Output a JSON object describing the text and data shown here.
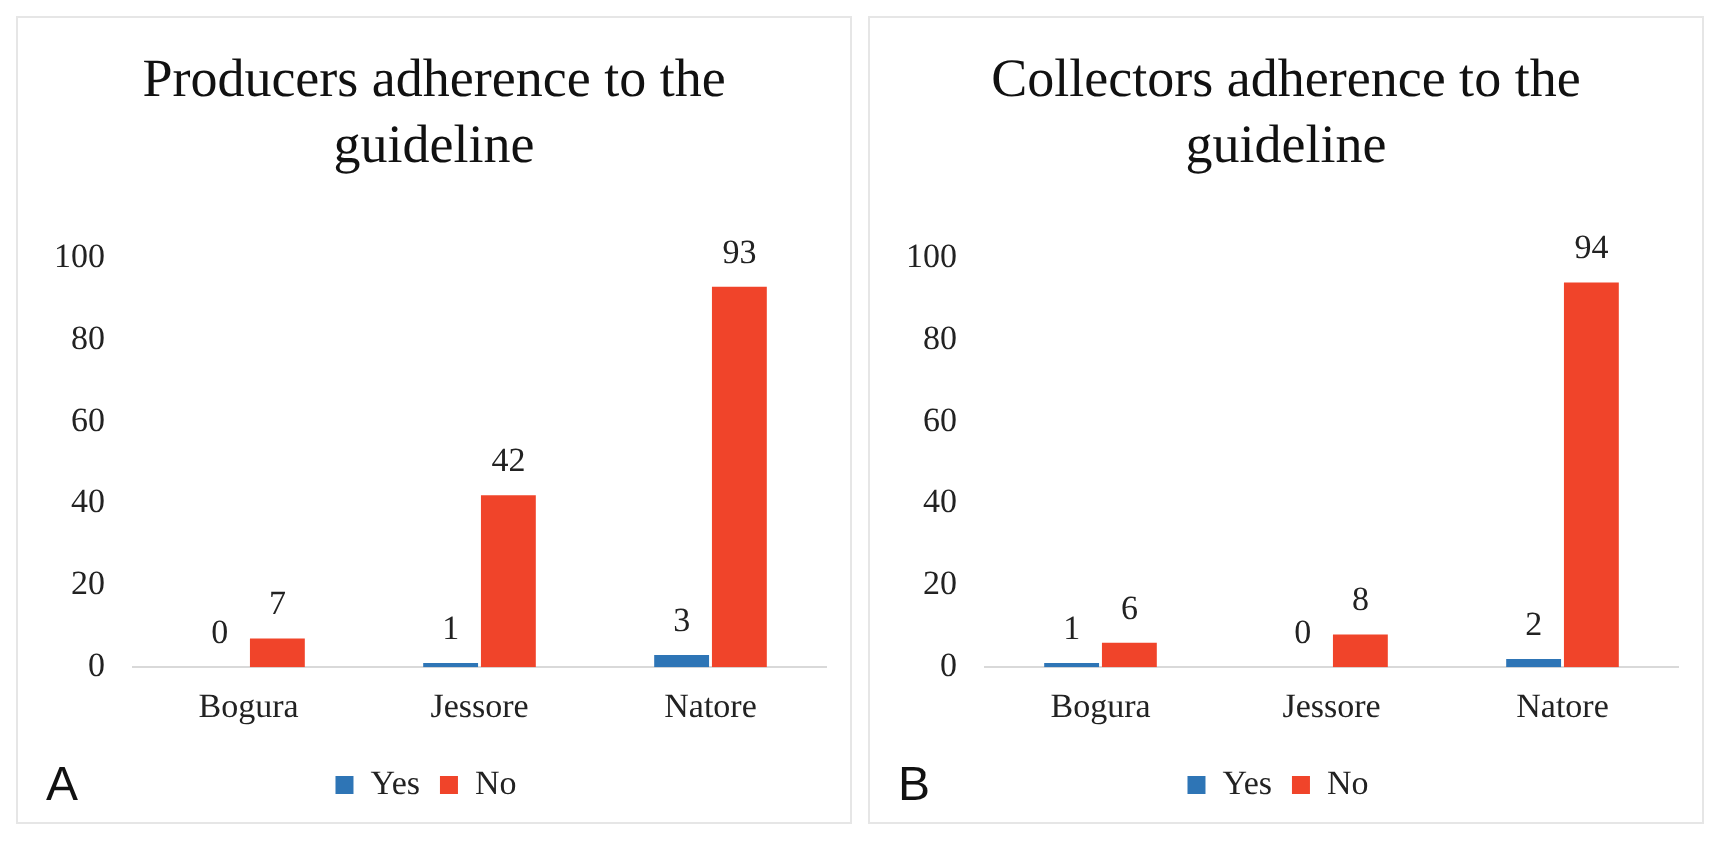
{
  "chart_data": [
    {
      "type": "bar",
      "title": "Producers adherence to the guideline",
      "categories": [
        "Bogura",
        "Jessore",
        "Natore"
      ],
      "series": [
        {
          "name": "Yes",
          "color": "#2e75b6",
          "values": [
            0,
            1,
            3
          ]
        },
        {
          "name": "No",
          "color": "#f0442a",
          "values": [
            7,
            42,
            93
          ]
        }
      ],
      "ylim": [
        0,
        100
      ],
      "yticks": [
        0,
        20,
        40,
        60,
        80,
        100
      ],
      "grid": false,
      "legend": "bottom",
      "data_labels": true,
      "annotations": [
        "A"
      ]
    },
    {
      "type": "bar",
      "title": "Collectors adherence to the guideline",
      "categories": [
        "Bogura",
        "Jessore",
        "Natore"
      ],
      "series": [
        {
          "name": "Yes",
          "color": "#2e75b6",
          "values": [
            1,
            0,
            2
          ]
        },
        {
          "name": "No",
          "color": "#f0442a",
          "values": [
            6,
            8,
            94
          ]
        }
      ],
      "ylim": [
        0,
        100
      ],
      "yticks": [
        0,
        20,
        40,
        60,
        80,
        100
      ],
      "grid": false,
      "legend": "bottom",
      "data_labels": true,
      "annotations": [
        "B"
      ]
    }
  ]
}
